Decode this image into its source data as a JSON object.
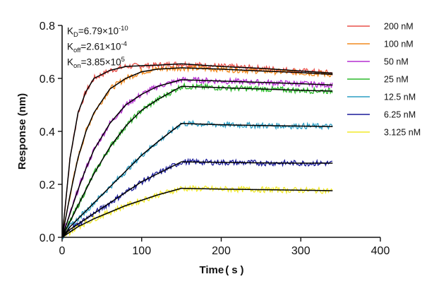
{
  "chart_data": {
    "type": "line",
    "title": "",
    "xlabel": "Time",
    "xlabel_unit": "s",
    "ylabel": "Response (nm)",
    "xlim": [
      0,
      400
    ],
    "ylim": [
      0,
      0.8
    ],
    "x_ticks": [
      "0",
      "100",
      "200",
      "300",
      "400"
    ],
    "y_ticks": [
      "0.0",
      "0.2",
      "0.4",
      "0.6",
      "0.8"
    ],
    "grid": false,
    "legend_position": "right",
    "annotations": {
      "kd": {
        "label_main": "K",
        "label_sub": "D",
        "value": "=6.79×10",
        "exponent": "-10"
      },
      "koff": {
        "label_main": "K",
        "label_sub": "off",
        "value": "=2.61×10",
        "exponent": "-4"
      },
      "kon": {
        "label_main": "K",
        "label_sub": "on",
        "value": "=3.85×10",
        "exponent": "5"
      }
    },
    "association_end": 150,
    "dissociation_end": 340,
    "fit_color": "#000000",
    "series": [
      {
        "name": "200 nM",
        "color": "#e8504a",
        "x": [
          0,
          10,
          20,
          30,
          40,
          60,
          80,
          100,
          120,
          150,
          200,
          250,
          300,
          340
        ],
        "y": [
          0,
          0.3,
          0.47,
          0.55,
          0.6,
          0.63,
          0.645,
          0.648,
          0.65,
          0.655,
          0.645,
          0.638,
          0.628,
          0.62
        ]
      },
      {
        "name": "100 nM",
        "color": "#f28a1f",
        "x": [
          0,
          10,
          20,
          30,
          40,
          60,
          80,
          100,
          120,
          150,
          200,
          250,
          300,
          340
        ],
        "y": [
          0,
          0.16,
          0.3,
          0.4,
          0.47,
          0.56,
          0.6,
          0.625,
          0.635,
          0.64,
          0.635,
          0.628,
          0.622,
          0.615
        ]
      },
      {
        "name": "50 nM",
        "color": "#b52fd1",
        "x": [
          0,
          10,
          20,
          30,
          40,
          60,
          80,
          100,
          120,
          150,
          200,
          250,
          300,
          340
        ],
        "y": [
          0,
          0.09,
          0.18,
          0.26,
          0.33,
          0.43,
          0.5,
          0.54,
          0.57,
          0.595,
          0.59,
          0.585,
          0.58,
          0.575
        ]
      },
      {
        "name": "25 nM",
        "color": "#2cba2c",
        "x": [
          0,
          10,
          20,
          30,
          40,
          60,
          80,
          100,
          120,
          150,
          200,
          250,
          300,
          340
        ],
        "y": [
          0,
          0.06,
          0.12,
          0.18,
          0.24,
          0.34,
          0.42,
          0.48,
          0.52,
          0.57,
          0.565,
          0.56,
          0.555,
          0.552
        ]
      },
      {
        "name": "12.5 nM",
        "color": "#2b9ec4",
        "x": [
          0,
          10,
          20,
          30,
          40,
          60,
          80,
          100,
          120,
          150,
          200,
          250,
          300,
          340
        ],
        "y": [
          0,
          0.04,
          0.07,
          0.1,
          0.13,
          0.19,
          0.25,
          0.31,
          0.36,
          0.43,
          0.425,
          0.422,
          0.42,
          0.418
        ]
      },
      {
        "name": "6.25 nM",
        "color": "#1a1a9a",
        "x": [
          0,
          10,
          20,
          30,
          40,
          60,
          80,
          100,
          120,
          150,
          200,
          250,
          300,
          340
        ],
        "y": [
          0,
          0.03,
          0.05,
          0.07,
          0.09,
          0.13,
          0.17,
          0.21,
          0.24,
          0.285,
          0.283,
          0.281,
          0.28,
          0.28
        ]
      },
      {
        "name": "3.125 nM",
        "color": "#f2ea2a",
        "x": [
          0,
          10,
          20,
          30,
          40,
          60,
          80,
          100,
          120,
          150,
          200,
          250,
          300,
          340
        ],
        "y": [
          0,
          0.02,
          0.04,
          0.055,
          0.07,
          0.095,
          0.12,
          0.14,
          0.16,
          0.185,
          0.182,
          0.18,
          0.178,
          0.176
        ]
      }
    ]
  }
}
